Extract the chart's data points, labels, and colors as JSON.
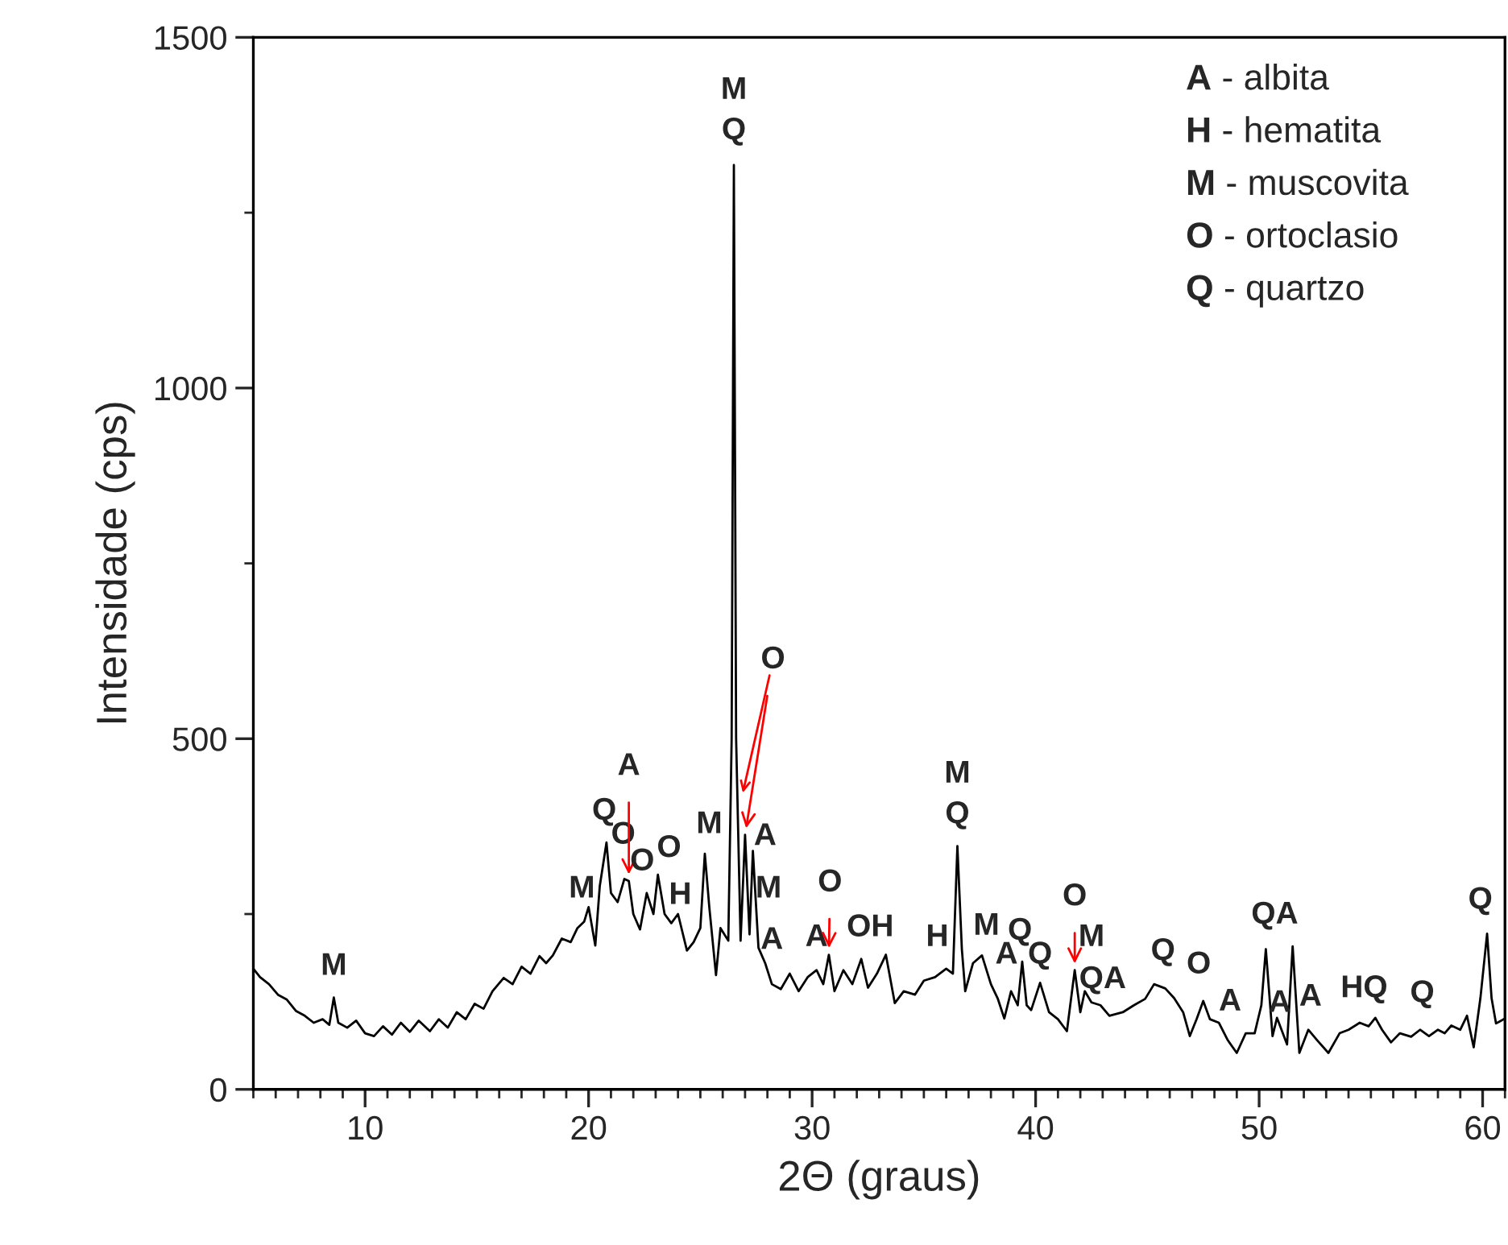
{
  "chart_data": {
    "type": "line",
    "xlabel": "2Θ (graus)",
    "ylabel": "Intensidade (cps)",
    "xlim": [
      5,
      61
    ],
    "ylim": [
      0,
      1500
    ],
    "xticks": [
      {
        "value": 5,
        "label": null
      },
      {
        "value": 6,
        "label": null
      },
      {
        "value": 7,
        "label": null
      },
      {
        "value": 8,
        "label": null
      },
      {
        "value": 9,
        "label": null
      },
      10,
      {
        "value": 11,
        "label": null
      },
      {
        "value": 12,
        "label": null
      },
      {
        "value": 13,
        "label": null
      },
      {
        "value": 14,
        "label": null
      },
      {
        "value": 15,
        "label": null
      },
      {
        "value": 16,
        "label": null
      },
      {
        "value": 17,
        "label": null
      },
      {
        "value": 18,
        "label": null
      },
      {
        "value": 19,
        "label": null
      },
      20,
      {
        "value": 21,
        "label": null
      },
      {
        "value": 22,
        "label": null
      },
      {
        "value": 23,
        "label": null
      },
      {
        "value": 24,
        "label": null
      },
      {
        "value": 25,
        "label": null
      },
      {
        "value": 26,
        "label": null
      },
      {
        "value": 27,
        "label": null
      },
      {
        "value": 28,
        "label": null
      },
      {
        "value": 29,
        "label": null
      },
      30,
      {
        "value": 31,
        "label": null
      },
      {
        "value": 32,
        "label": null
      },
      {
        "value": 33,
        "label": null
      },
      {
        "value": 34,
        "label": null
      },
      {
        "value": 35,
        "label": null
      },
      {
        "value": 36,
        "label": null
      },
      {
        "value": 37,
        "label": null
      },
      {
        "value": 38,
        "label": null
      },
      {
        "value": 39,
        "label": null
      },
      40,
      {
        "value": 41,
        "label": null
      },
      {
        "value": 42,
        "label": null
      },
      {
        "value": 43,
        "label": null
      },
      {
        "value": 44,
        "label": null
      },
      {
        "value": 45,
        "label": null
      },
      {
        "value": 46,
        "label": null
      },
      {
        "value": 47,
        "label": null
      },
      {
        "value": 48,
        "label": null
      },
      {
        "value": 49,
        "label": null
      },
      50,
      {
        "value": 51,
        "label": null
      },
      {
        "value": 52,
        "label": null
      },
      {
        "value": 53,
        "label": null
      },
      {
        "value": 54,
        "label": null
      },
      {
        "value": 55,
        "label": null
      },
      {
        "value": 56,
        "label": null
      },
      {
        "value": 57,
        "label": null
      },
      {
        "value": 58,
        "label": null
      },
      {
        "value": 59,
        "label": null
      },
      60,
      {
        "value": 61,
        "label": null
      }
    ],
    "yticks": [
      0,
      {
        "value": 250,
        "label": null
      },
      500,
      {
        "value": 750,
        "label": null
      },
      1000,
      {
        "value": 1250,
        "label": null
      },
      1500
    ],
    "grid": false,
    "legend": false,
    "marker": "none",
    "line_style": "solid",
    "series": [
      {
        "color": "#000000",
        "x": [
          5.0,
          5.3,
          5.7,
          6.1,
          6.5,
          6.9,
          7.3,
          7.7,
          8.1,
          8.4,
          8.6,
          8.8,
          9.2,
          9.6,
          10.0,
          10.4,
          10.8,
          11.2,
          11.6,
          12.0,
          12.4,
          12.9,
          13.3,
          13.7,
          14.1,
          14.5,
          14.9,
          15.3,
          15.7,
          16.2,
          16.6,
          17.0,
          17.4,
          17.8,
          18.1,
          18.4,
          18.8,
          19.2,
          19.5,
          19.8,
          20.0,
          20.3,
          20.5,
          20.8,
          21.0,
          21.3,
          21.6,
          21.8,
          22.0,
          22.3,
          22.6,
          22.9,
          23.1,
          23.4,
          23.7,
          24.0,
          24.4,
          24.7,
          25.0,
          25.2,
          25.4,
          25.7,
          25.9,
          26.25,
          26.4,
          26.5,
          26.6,
          26.8,
          27.0,
          27.2,
          27.35,
          27.6,
          27.9,
          28.2,
          28.6,
          29.0,
          29.4,
          29.8,
          30.2,
          30.5,
          30.75,
          31.0,
          31.4,
          31.8,
          32.2,
          32.5,
          32.9,
          33.3,
          33.7,
          34.1,
          34.6,
          35.0,
          35.5,
          36.0,
          36.3,
          36.5,
          36.7,
          36.85,
          37.2,
          37.6,
          38.0,
          38.3,
          38.6,
          38.9,
          39.2,
          39.4,
          39.6,
          39.8,
          40.2,
          40.6,
          41.0,
          41.4,
          41.75,
          42.0,
          42.2,
          42.5,
          42.9,
          43.3,
          43.9,
          44.4,
          44.9,
          45.3,
          45.8,
          46.2,
          46.6,
          46.9,
          47.2,
          47.5,
          47.8,
          48.2,
          48.6,
          49.0,
          49.4,
          49.8,
          50.1,
          50.3,
          50.6,
          50.8,
          51.25,
          51.5,
          51.8,
          52.2,
          52.6,
          53.1,
          53.6,
          54.0,
          54.5,
          54.9,
          55.2,
          55.5,
          55.9,
          56.3,
          56.8,
          57.2,
          57.6,
          58.0,
          58.3,
          58.6,
          59.0,
          59.3,
          59.6,
          59.9,
          60.2,
          60.4,
          60.6,
          61.0
        ],
        "values": [
          172,
          160,
          150,
          135,
          128,
          112,
          105,
          95,
          100,
          92,
          131,
          95,
          88,
          98,
          80,
          76,
          90,
          78,
          95,
          82,
          98,
          83,
          100,
          88,
          110,
          100,
          122,
          115,
          140,
          159,
          150,
          175,
          165,
          190,
          180,
          191,
          215,
          210,
          230,
          239,
          260,
          205,
          290,
          352,
          280,
          267,
          300,
          297,
          250,
          228,
          280,
          250,
          306,
          250,
          237,
          250,
          198,
          210,
          230,
          336,
          260,
          163,
          230,
          212,
          500,
          1318,
          500,
          212,
          363,
          221,
          340,
          202,
          180,
          150,
          143,
          165,
          140,
          160,
          170,
          150,
          192,
          140,
          170,
          150,
          186,
          145,
          165,
          192,
          123,
          140,
          135,
          155,
          160,
          172,
          165,
          347,
          200,
          140,
          180,
          191,
          150,
          130,
          101,
          140,
          120,
          182,
          120,
          113,
          152,
          110,
          100,
          83,
          170,
          110,
          140,
          124,
          120,
          105,
          110,
          120,
          129,
          150,
          144,
          130,
          110,
          76,
          100,
          126,
          100,
          95,
          70,
          52,
          80,
          80,
          120,
          200,
          76,
          102,
          64,
          204,
          52,
          85,
          70,
          52,
          80,
          85,
          95,
          90,
          102,
          85,
          67,
          80,
          75,
          85,
          76,
          85,
          80,
          91,
          85,
          105,
          60,
          130,
          222,
          130,
          94,
          101
        ]
      }
    ],
    "annotations": [
      "M",
      "M",
      "Q",
      "O",
      {
        "text": "A",
        "x": 21.8,
        "y": 297
      },
      "O",
      "O",
      "H",
      "M",
      "M\nQ",
      {
        "text": "O",
        "x": 27.0,
        "y": 363
      },
      "A",
      "M",
      "A",
      "A",
      {
        "text": "O",
        "x": 30.75,
        "y": 192
      },
      "OH",
      "H",
      "M\nQ",
      "M",
      "A",
      "Q",
      "Q",
      {
        "text": "O",
        "x": 41.75,
        "y": 170
      },
      "M",
      "QA",
      "Q",
      "O",
      "A",
      "QA",
      "A",
      "A",
      "HQ",
      "Q",
      "Q",
      "A - albita",
      "H - hematita",
      "M - muscovita",
      "O - ortoclasio",
      "Q - quartzo"
    ]
  }
}
